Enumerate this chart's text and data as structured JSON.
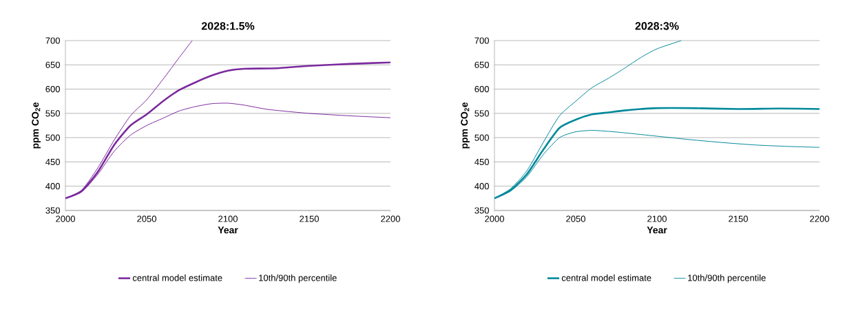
{
  "chart_data": [
    {
      "type": "line",
      "title": "2028:1.5%",
      "xlabel": "Year",
      "ylabel": "ppm CO$_{2}$e",
      "xlim": [
        2000,
        2200
      ],
      "ylim": [
        350,
        700
      ],
      "xticks": [
        2000,
        2050,
        2100,
        2150,
        2200
      ],
      "yticks": [
        350,
        400,
        450,
        500,
        550,
        600,
        650,
        700
      ],
      "grid": "y",
      "legend": "bottom",
      "marker": "none",
      "line_style": "solid",
      "series": [
        {
          "name": "central model estimate",
          "color": "#7b2a9e",
          "x": [
            2000,
            2010,
            2020,
            2030,
            2040,
            2050,
            2060,
            2070,
            2080,
            2090,
            2100,
            2110,
            2130,
            2150,
            2175,
            2200
          ],
          "values": [
            375,
            390,
            430,
            485,
            525,
            548,
            575,
            598,
            614,
            628,
            638,
            642,
            643,
            648,
            652,
            655
          ]
        },
        {
          "name": "10th/90th percentile",
          "color": "#7b2a9e",
          "x": [
            2000,
            2010,
            2020,
            2030,
            2040,
            2050,
            2060,
            2070,
            2078
          ],
          "values": [
            375,
            392,
            438,
            495,
            545,
            578,
            620,
            665,
            700
          ]
        },
        {
          "color": "#7b2a9e",
          "x": [
            2000,
            2010,
            2020,
            2030,
            2040,
            2050,
            2060,
            2070,
            2080,
            2090,
            2100,
            2110,
            2125,
            2150,
            2175,
            2200
          ],
          "values": [
            375,
            388,
            425,
            472,
            505,
            525,
            540,
            555,
            564,
            570,
            571,
            567,
            558,
            550,
            545,
            541
          ]
        }
      ]
    },
    {
      "type": "line",
      "title": "2028:3%",
      "xlabel": "Year",
      "ylabel": "ppm CO$_{2}$e",
      "xlim": [
        2000,
        2200
      ],
      "ylim": [
        350,
        700
      ],
      "xticks": [
        2000,
        2050,
        2100,
        2150,
        2200
      ],
      "yticks": [
        350,
        400,
        450,
        500,
        550,
        600,
        650,
        700
      ],
      "grid": "y",
      "legend": "bottom",
      "marker": "none",
      "line_style": "solid",
      "series": [
        {
          "name": "central model estimate",
          "color": "#00899b",
          "x": [
            2000,
            2010,
            2020,
            2030,
            2040,
            2050,
            2060,
            2070,
            2080,
            2090,
            2100,
            2120,
            2150,
            2175,
            2200
          ],
          "values": [
            375,
            392,
            425,
            475,
            520,
            537,
            548,
            552,
            556,
            559,
            561,
            561,
            559,
            560,
            559
          ]
        },
        {
          "name": "10th/90th percentile",
          "color": "#00899b",
          "x": [
            2000,
            2010,
            2020,
            2030,
            2040,
            2050,
            2060,
            2070,
            2080,
            2090,
            2100,
            2115
          ],
          "values": [
            375,
            395,
            432,
            490,
            545,
            575,
            603,
            622,
            643,
            665,
            683,
            700
          ]
        },
        {
          "color": "#00899b",
          "x": [
            2000,
            2010,
            2020,
            2030,
            2040,
            2050,
            2060,
            2070,
            2080,
            2100,
            2120,
            2140,
            2160,
            2180,
            2200
          ],
          "values": [
            375,
            390,
            420,
            465,
            500,
            512,
            515,
            513,
            510,
            503,
            496,
            490,
            485,
            482,
            480
          ]
        }
      ]
    }
  ]
}
